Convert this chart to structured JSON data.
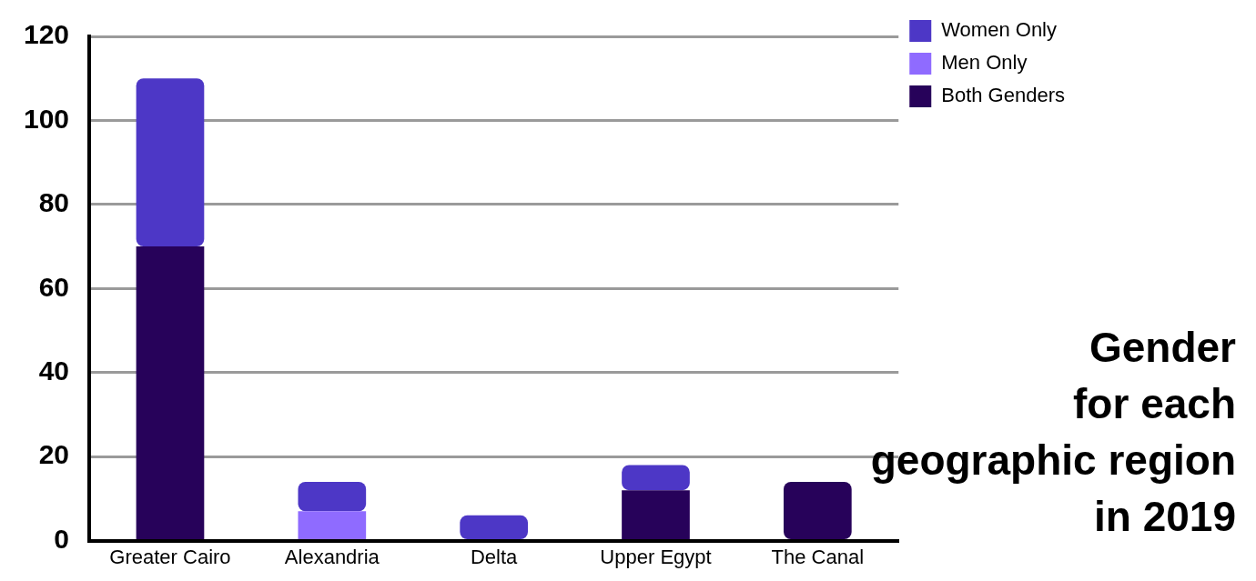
{
  "chart_data": {
    "type": "bar",
    "title": "Gender\nfor each\ngeographic region\nin 2019",
    "categories": [
      "Greater Cairo",
      "Alexandria",
      "Delta",
      "Upper Egypt",
      "The Canal"
    ],
    "stacked": true,
    "series": [
      {
        "name": "Both Genders",
        "color": "#27025a",
        "values": [
          70,
          0,
          0,
          12,
          14
        ]
      },
      {
        "name": "Men Only",
        "color": "#8f6bff",
        "values": [
          0,
          7,
          0,
          0,
          0
        ]
      },
      {
        "name": "Women Only",
        "color": "#4d37c6",
        "values": [
          40,
          7,
          6,
          6,
          0
        ]
      }
    ],
    "ylim": [
      0,
      120
    ],
    "yticks": [
      0,
      20,
      40,
      60,
      80,
      100,
      120
    ],
    "grid": "y",
    "legend": "top right"
  }
}
